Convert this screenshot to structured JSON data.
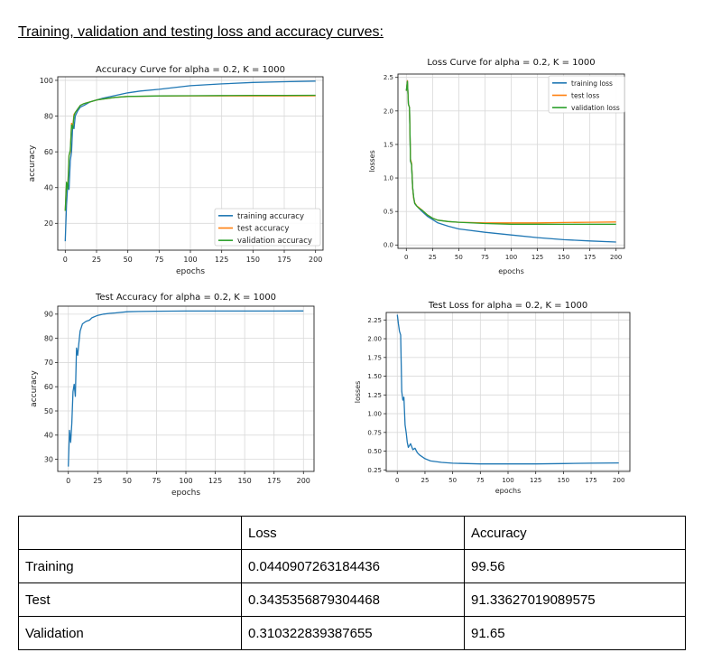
{
  "heading": "Training, validation and testing loss and accuracy curves:",
  "chart_data": [
    {
      "id": "acc",
      "type": "line",
      "title": "Accuracy Curve for alpha = 0.2, K = 1000",
      "xlabel": "epochs",
      "ylabel": "accuracy",
      "xlim": [
        -6,
        206
      ],
      "ylim": [
        5,
        102
      ],
      "xticks": [
        0,
        25,
        50,
        75,
        100,
        125,
        150,
        175,
        200
      ],
      "xtick_labels": [
        "0",
        "25",
        "50",
        "75",
        "100",
        "125",
        "150",
        "175",
        "200"
      ],
      "yticks": [
        20,
        40,
        60,
        80,
        100
      ],
      "ytick_labels": [
        "20",
        "40",
        "60",
        "80",
        "100"
      ],
      "grid": true,
      "legend": "lower-right",
      "series": [
        {
          "name": "training accuracy",
          "color": "#1f77b4",
          "x": [
            0,
            1,
            2,
            3,
            4,
            5,
            6,
            7,
            8,
            10,
            12,
            15,
            20,
            25,
            30,
            40,
            50,
            60,
            75,
            100,
            125,
            150,
            175,
            200
          ],
          "y": [
            10,
            30,
            42,
            39,
            55,
            60,
            75,
            73,
            80,
            83,
            85,
            86,
            88,
            89,
            90,
            91.5,
            93,
            94,
            95,
            97,
            98,
            98.8,
            99.2,
            99.56
          ]
        },
        {
          "name": "test accuracy",
          "color": "#ff7f0e",
          "x": [
            0,
            1,
            2,
            3,
            4,
            5,
            6,
            7,
            8,
            10,
            12,
            15,
            20,
            25,
            30,
            40,
            50,
            75,
            100,
            125,
            150,
            175,
            200
          ],
          "y": [
            27,
            42,
            40,
            58,
            60,
            76,
            74,
            81,
            82,
            84,
            86,
            87,
            88,
            89,
            89.5,
            90.5,
            91,
            91.2,
            91.3,
            91.3,
            91.3,
            91.3,
            91.34
          ]
        },
        {
          "name": "validation accuracy",
          "color": "#2ca02c",
          "x": [
            0,
            1,
            2,
            3,
            4,
            5,
            6,
            7,
            8,
            10,
            12,
            15,
            20,
            25,
            30,
            40,
            50,
            75,
            100,
            125,
            150,
            175,
            200
          ],
          "y": [
            27,
            43,
            39,
            58,
            61,
            75,
            73,
            80,
            82,
            84,
            86,
            87,
            88,
            89,
            89.5,
            90.5,
            91,
            91.3,
            91.4,
            91.5,
            91.6,
            91.6,
            91.65
          ]
        }
      ]
    },
    {
      "id": "loss",
      "type": "line",
      "title": "Loss Curve for alpha = 0.2, K = 1000",
      "xlabel": "epochs",
      "ylabel": "losses",
      "xlim": [
        -8,
        208
      ],
      "ylim": [
        -0.05,
        2.55
      ],
      "xticks": [
        0,
        25,
        50,
        75,
        100,
        125,
        150,
        175,
        200
      ],
      "xtick_labels": [
        "0",
        "25",
        "50",
        "75",
        "100",
        "125",
        "150",
        "175",
        "200"
      ],
      "yticks": [
        0.0,
        0.5,
        1.0,
        1.5,
        2.0,
        2.5
      ],
      "ytick_labels": [
        "0.0",
        "0.5",
        "1.0",
        "1.5",
        "2.0",
        "2.5"
      ],
      "grid": true,
      "legend": "upper-right",
      "series": [
        {
          "name": "training loss",
          "color": "#1f77b4",
          "x": [
            0,
            1,
            2,
            3,
            4,
            5,
            6,
            7,
            8,
            10,
            12,
            15,
            20,
            25,
            30,
            40,
            50,
            75,
            100,
            125,
            150,
            175,
            200
          ],
          "y": [
            2.3,
            2.45,
            2.1,
            2.05,
            1.25,
            1.2,
            0.85,
            0.7,
            0.62,
            0.58,
            0.55,
            0.5,
            0.43,
            0.38,
            0.33,
            0.28,
            0.24,
            0.19,
            0.15,
            0.11,
            0.08,
            0.06,
            0.044
          ]
        },
        {
          "name": "test loss",
          "color": "#ff7f0e",
          "x": [
            0,
            1,
            2,
            3,
            4,
            5,
            6,
            7,
            8,
            10,
            12,
            15,
            20,
            25,
            30,
            40,
            50,
            75,
            100,
            125,
            150,
            175,
            200
          ],
          "y": [
            2.3,
            2.45,
            2.1,
            2.05,
            1.28,
            1.22,
            0.85,
            0.7,
            0.63,
            0.58,
            0.56,
            0.52,
            0.45,
            0.4,
            0.37,
            0.35,
            0.34,
            0.33,
            0.33,
            0.33,
            0.335,
            0.34,
            0.3435
          ]
        },
        {
          "name": "validation loss",
          "color": "#2ca02c",
          "x": [
            0,
            1,
            2,
            3,
            4,
            5,
            6,
            7,
            8,
            10,
            12,
            15,
            20,
            25,
            30,
            40,
            50,
            75,
            100,
            125,
            150,
            175,
            200
          ],
          "y": [
            2.3,
            2.44,
            2.1,
            2.05,
            1.26,
            1.2,
            0.86,
            0.72,
            0.62,
            0.58,
            0.55,
            0.52,
            0.45,
            0.4,
            0.37,
            0.35,
            0.34,
            0.32,
            0.31,
            0.31,
            0.31,
            0.31,
            0.3103
          ]
        }
      ]
    },
    {
      "id": "testacc",
      "type": "line",
      "title": "Test Accuracy for alpha = 0.2, K = 1000",
      "xlabel": "epochs",
      "ylabel": "accuracy",
      "xlim": [
        -9,
        209
      ],
      "ylim": [
        25,
        93.3
      ],
      "xticks": [
        0,
        25,
        50,
        75,
        100,
        125,
        150,
        175,
        200
      ],
      "xtick_labels": [
        "0",
        "25",
        "50",
        "75",
        "100",
        "125",
        "150",
        "175",
        "200"
      ],
      "yticks": [
        30,
        40,
        50,
        60,
        70,
        80,
        90
      ],
      "ytick_labels": [
        "30",
        "40",
        "50",
        "60",
        "70",
        "80",
        "90"
      ],
      "grid": true,
      "legend": "none",
      "series": [
        {
          "name": "",
          "color": "#1f77b4",
          "x": [
            0,
            1,
            2,
            3,
            4,
            5,
            6,
            7,
            8,
            9,
            10,
            12,
            15,
            18,
            20,
            25,
            30,
            35,
            40,
            50,
            60,
            75,
            100,
            125,
            150,
            175,
            200
          ],
          "y": [
            27,
            42,
            37,
            45,
            58,
            61,
            56,
            76,
            73,
            78,
            83,
            86,
            87,
            87.5,
            88.5,
            89.5,
            90,
            90.3,
            90.5,
            91,
            91.1,
            91.2,
            91.3,
            91.3,
            91.3,
            91.3,
            91.34
          ]
        }
      ]
    },
    {
      "id": "testloss",
      "type": "line",
      "title": "Test Loss for alpha = 0.2, K = 1000",
      "xlabel": "epochs",
      "ylabel": "losses",
      "xlim": [
        -10,
        210
      ],
      "ylim": [
        0.23,
        2.35
      ],
      "xticks": [
        0,
        25,
        50,
        75,
        100,
        125,
        150,
        175,
        200
      ],
      "xtick_labels": [
        "0",
        "25",
        "50",
        "75",
        "100",
        "125",
        "150",
        "175",
        "200"
      ],
      "yticks": [
        0.25,
        0.5,
        0.75,
        1.0,
        1.25,
        1.5,
        1.75,
        2.0,
        2.25
      ],
      "ytick_labels": [
        "0.25",
        "0.50",
        "0.75",
        "1.00",
        "1.25",
        "1.50",
        "1.75",
        "2.00",
        "2.25"
      ],
      "grid": true,
      "legend": "none",
      "series": [
        {
          "name": "",
          "color": "#1f77b4",
          "x": [
            0,
            1,
            2,
            3,
            4,
            5,
            6,
            7,
            8,
            9,
            10,
            12,
            14,
            16,
            18,
            20,
            25,
            30,
            40,
            50,
            75,
            100,
            125,
            150,
            175,
            200
          ],
          "y": [
            2.32,
            2.2,
            2.1,
            2.05,
            1.3,
            1.18,
            1.22,
            0.85,
            0.75,
            0.62,
            0.55,
            0.6,
            0.52,
            0.54,
            0.48,
            0.45,
            0.4,
            0.37,
            0.35,
            0.34,
            0.33,
            0.33,
            0.33,
            0.335,
            0.34,
            0.3435
          ]
        }
      ]
    }
  ],
  "results_table": {
    "header": [
      "",
      "Loss",
      "Accuracy"
    ],
    "rows": [
      [
        "Training",
        "0.0440907263184436",
        "99.56"
      ],
      [
        "Test",
        "0.3435356879304468",
        "91.33627019089575"
      ],
      [
        "Validation",
        "0.310322839387655",
        "91.65"
      ]
    ]
  }
}
